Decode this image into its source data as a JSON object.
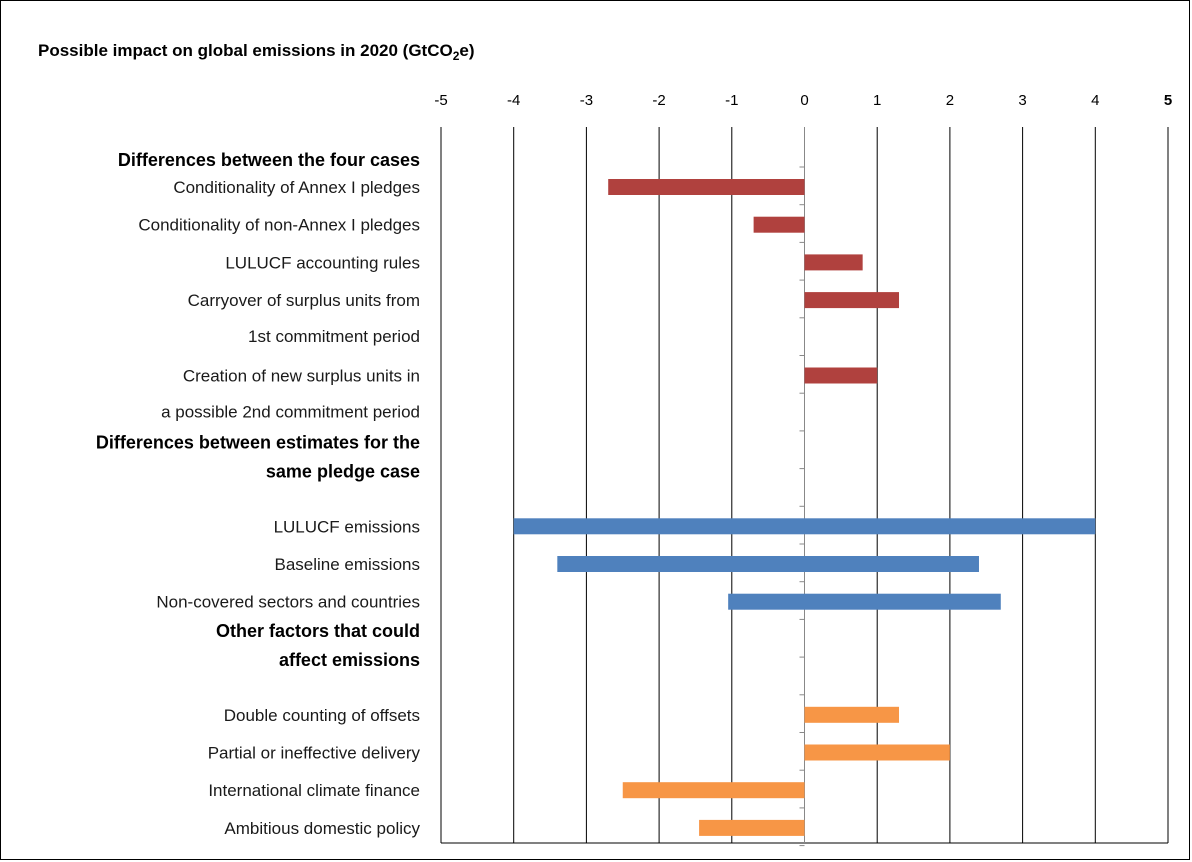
{
  "title": {
    "main": "Possible impact on global emissions in 2020 (GtCO",
    "sub": "2",
    "suffix": "e)"
  },
  "chart_data": {
    "type": "bar",
    "orientation": "horizontal",
    "xlim": [
      -5,
      5
    ],
    "xticks": [
      "-5",
      "-4",
      "-3",
      "-2",
      "-1",
      "0",
      "1",
      "2",
      "3",
      "4",
      "5"
    ],
    "grid": true,
    "groups": [
      {
        "heading": [
          "Differences between the four cases"
        ],
        "color": "#b0413e",
        "items": [
          {
            "label": [
              "Conditionality of Annex I pledges"
            ],
            "range": [
              -2.7,
              0
            ]
          },
          {
            "label": [
              "Conditionality of non-Annex I pledges"
            ],
            "range": [
              -0.7,
              0
            ]
          },
          {
            "label": [
              "LULUCF accounting rules"
            ],
            "range": [
              0,
              0.8
            ]
          },
          {
            "label": [
              "Carryover of surplus units from",
              "1st commitment period"
            ],
            "range": [
              0,
              1.3
            ]
          },
          {
            "label": [
              "Creation of new surplus units in",
              "a possible 2nd commitment period"
            ],
            "range": [
              0,
              1.0
            ]
          }
        ]
      },
      {
        "heading": [
          "Differences between estimates for the",
          "same pledge case"
        ],
        "color": "#4f81bd",
        "items": [
          {
            "label": [
              "LULUCF emissions"
            ],
            "range": [
              -4.0,
              4.0
            ]
          },
          {
            "label": [
              "Baseline emissions"
            ],
            "range": [
              -3.4,
              2.4
            ]
          },
          {
            "label": [
              "Non-covered sectors and countries"
            ],
            "range": [
              -1.05,
              2.7
            ]
          }
        ]
      },
      {
        "heading": [
          "Other factors that could",
          "affect emissions"
        ],
        "color": "#f79646",
        "items": [
          {
            "label": [
              "Double counting of offsets"
            ],
            "range": [
              0,
              1.3
            ]
          },
          {
            "label": [
              "Partial or ineffective delivery"
            ],
            "range": [
              0,
              2.0
            ]
          },
          {
            "label": [
              "International climate finance"
            ],
            "range": [
              -2.5,
              0
            ]
          },
          {
            "label": [
              "Ambitious domestic policy"
            ],
            "range": [
              -1.45,
              0
            ]
          }
        ]
      }
    ]
  }
}
